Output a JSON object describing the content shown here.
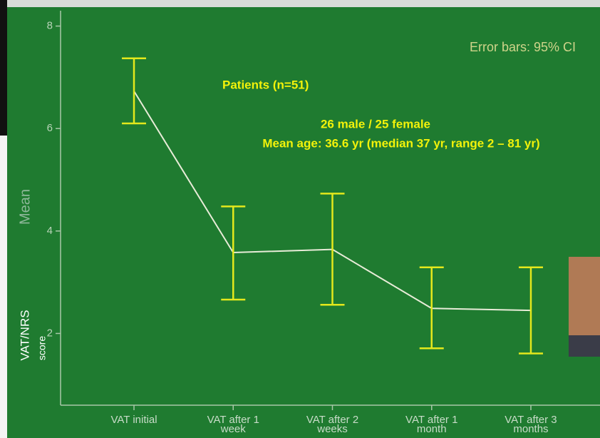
{
  "chart_data": {
    "type": "line",
    "ylabel": "Mean",
    "overlay_label": "VAT/NRS",
    "overlay_sublabel": "score",
    "error_note": "Error bars: 95% CI",
    "annotations": [
      "Patients  (n=51)",
      "26 male / 25 female",
      "Mean age: 36.6 yr (median 37 yr, range 2 – 81 yr)"
    ],
    "categories": [
      "VAT initial",
      "VAT after 1 week",
      "VAT after 2 weeks",
      "VAT after 1 month",
      "VAT after 3 months"
    ],
    "values": [
      6.73,
      3.58,
      3.64,
      2.49,
      2.45
    ],
    "ci_low": [
      6.1,
      2.66,
      2.56,
      1.71,
      1.61
    ],
    "ci_high": [
      7.37,
      4.48,
      4.73,
      3.29,
      3.29
    ],
    "color": "#e8ecd8",
    "error_color": "#e4e81c",
    "ylim": [
      0.6,
      8.3
    ],
    "yticks": [
      2,
      4,
      6,
      8
    ]
  }
}
